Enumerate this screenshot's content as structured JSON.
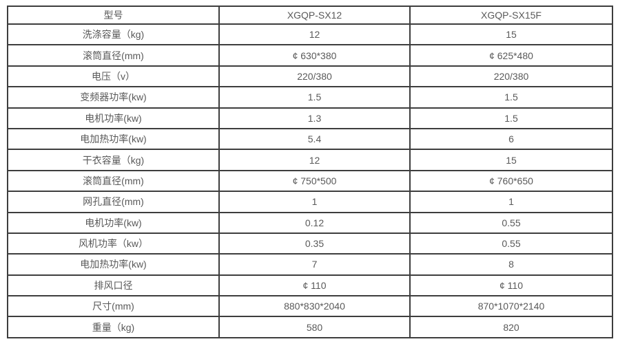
{
  "colors": {
    "border": "#3d3d3d",
    "text": "#595959",
    "background": "#ffffff"
  },
  "chart_data": {
    "type": "table",
    "columns": [
      "型号",
      "XGQP-SX12",
      "XGQP-SX15F"
    ],
    "rows": [
      [
        "洗涤容量（kg)",
        "12",
        "15"
      ],
      [
        "滚筒直径(mm)",
        "¢ 630*380",
        "¢ 625*480"
      ],
      [
        "电压（v）",
        "220/380",
        "220/380"
      ],
      [
        "变频器功率(kw)",
        "1.5",
        "1.5"
      ],
      [
        "电机功率(kw)",
        "1.3",
        "1.5"
      ],
      [
        "电加热功率(kw)",
        "5.4",
        "6"
      ],
      [
        "干衣容量（kg)",
        "12",
        "15"
      ],
      [
        "滚筒直径(mm)",
        "¢ 750*500",
        "¢ 760*650"
      ],
      [
        "网孔直径(mm)",
        "1",
        "1"
      ],
      [
        "电机功率(kw)",
        "0.12",
        "0.55"
      ],
      [
        "风机功率（kw）",
        "0.35",
        "0.55"
      ],
      [
        "电加热功率(kw)",
        "7",
        "8"
      ],
      [
        "排风口径",
        "¢ 110",
        "¢ 110"
      ],
      [
        "尺寸(mm)",
        "880*830*2040",
        "870*1070*2140"
      ],
      [
        "重量（kg)",
        "580",
        "820"
      ]
    ]
  }
}
